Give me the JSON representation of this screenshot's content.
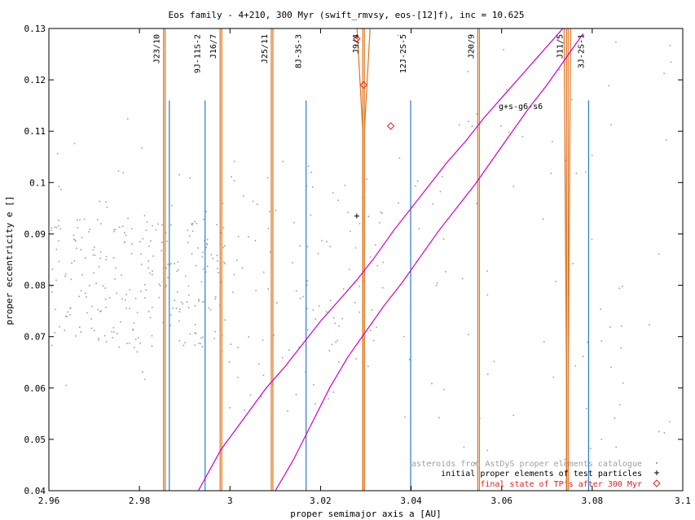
{
  "chart_data": {
    "type": "scatter",
    "title": "Eos family - 4+210, 300 Myr (swift_rmvsy, eos-[12]f), inc = 10.625",
    "xlabel": "proper semimajor axis a [AU]",
    "ylabel": "proper eccentricity e []",
    "xlim": [
      2.96,
      3.1
    ],
    "ylim": [
      0.04,
      0.13
    ],
    "xticks": [
      "2.96",
      "2.98",
      "3",
      "3.02",
      "3.04",
      "3.06",
      "3.08",
      "3.1"
    ],
    "yticks": [
      "0.04",
      "0.05",
      "0.06",
      "0.07",
      "0.08",
      "0.09",
      "0.1",
      "0.11",
      "0.12",
      "0.13"
    ],
    "grid": false,
    "legend_position": "bottom-right",
    "resonances": [
      {
        "label": "J23/10",
        "a": 2.9855,
        "line": "orange"
      },
      {
        "label": "9J-11S-2",
        "a": 2.9945,
        "line": "blue"
      },
      {
        "label": "J16/7",
        "a": 2.998,
        "line": "orange"
      },
      {
        "label": "J25/11",
        "a": 3.0093,
        "line": "orange"
      },
      {
        "label": "8J-3S-3",
        "a": 3.0168,
        "line": "blue"
      },
      {
        "label": "J9/4",
        "a": 3.0295,
        "line": "orange"
      },
      {
        "label": "12J-2S-5",
        "a": 3.0399,
        "line": "blue"
      },
      {
        "label": "J20/9",
        "a": 3.0549,
        "line": "orange"
      },
      {
        "label": "J11/5",
        "a": 3.0745,
        "line": "orange"
      },
      {
        "label": "3J-2S-1",
        "a": 3.0792,
        "line": "blue"
      }
    ],
    "extra_blue_lines": [
      2.9866
    ],
    "secular_label": "g+s-g6-s6",
    "secular_curves": [
      {
        "x": [
          2.993,
          2.998,
          3.003,
          3.008,
          3.012,
          3.016,
          3.02,
          3.024,
          3.028,
          3.032,
          3.036,
          3.04,
          3.044,
          3.048,
          3.052,
          3.056,
          3.06,
          3.064,
          3.068,
          3.072,
          3.076
        ],
        "y": [
          0.04,
          0.048,
          0.054,
          0.06,
          0.064,
          0.0685,
          0.073,
          0.077,
          0.081,
          0.0855,
          0.0905,
          0.095,
          0.0995,
          0.104,
          0.108,
          0.1125,
          0.1165,
          0.1205,
          0.1245,
          0.1285,
          0.1325
        ]
      },
      {
        "x": [
          3.01,
          3.014,
          3.018,
          3.022,
          3.026,
          3.03,
          3.034,
          3.038,
          3.042,
          3.046,
          3.05,
          3.054,
          3.058,
          3.062,
          3.066,
          3.07,
          3.074,
          3.078
        ],
        "y": [
          0.04,
          0.046,
          0.053,
          0.06,
          0.066,
          0.071,
          0.076,
          0.0805,
          0.0855,
          0.0905,
          0.095,
          0.0995,
          0.1045,
          0.1095,
          0.1145,
          0.119,
          0.124,
          0.129
        ]
      }
    ],
    "final_state_points": {
      "x": [
        3.028,
        3.0295,
        3.0355
      ],
      "y": [
        0.128,
        0.119,
        0.111
      ]
    },
    "initial_points": {
      "x": [
        3.028
      ],
      "y": [
        0.0935
      ]
    },
    "legend": [
      {
        "label": "asteroids from AstDyS proper elements catalogue",
        "color": "#a0a0a0",
        "marker": "dot"
      },
      {
        "label": "initial proper elements of test particles",
        "color": "#000000",
        "marker": "plus"
      },
      {
        "label": "final state of TP's after 300 Myr",
        "color": "#e0201e",
        "marker": "diamond"
      }
    ],
    "colors": {
      "orange": "#e0721d",
      "blue": "#2a78d6",
      "magenta": "#cc00cc",
      "red": "#e0201e",
      "gray": "#a0a0a0"
    }
  }
}
